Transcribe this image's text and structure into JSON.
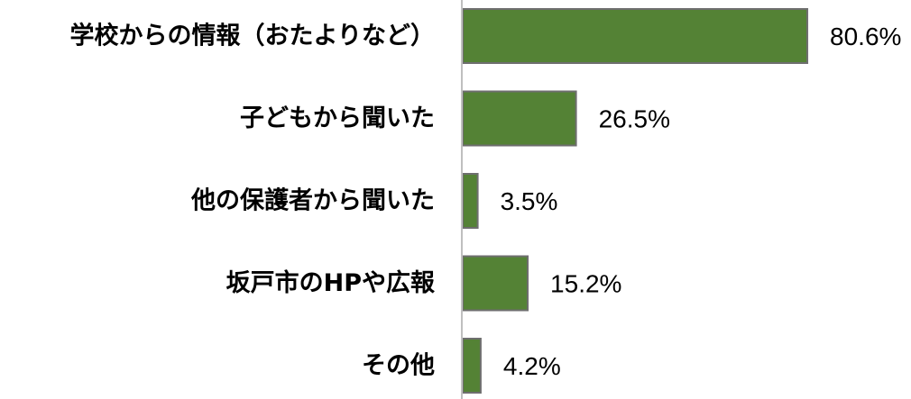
{
  "chart_data": {
    "type": "bar",
    "orientation": "horizontal",
    "categories": [
      "学校からの情報（おたよりなど）",
      "子どもから聞いた",
      "他の保護者から聞いた",
      "坂戸市のHPや広報",
      "その他"
    ],
    "values": [
      80.6,
      26.5,
      3.5,
      15.2,
      4.2
    ],
    "value_labels": [
      "80.6%",
      "26.5%",
      "3.5%",
      "15.2%",
      "4.2%"
    ],
    "unit": "%",
    "xlim": [
      0,
      100
    ],
    "grid": false,
    "legend": "none",
    "title": "",
    "xlabel": "",
    "ylabel": "",
    "bar_color": "#548235",
    "axis_color": "#bfbfbf"
  }
}
